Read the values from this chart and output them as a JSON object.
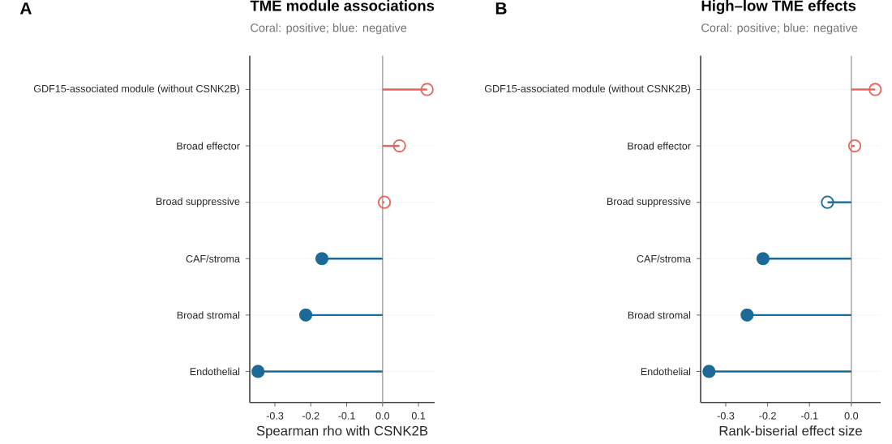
{
  "chart_data": [
    {
      "type": "lollipop",
      "orientation": "horizontal",
      "title": "TME module associations",
      "subtitle": "Coral: positive; blue: negative",
      "xlabel": "Spearman rho with CSNK2B",
      "annotations": [
        "A"
      ],
      "categories": [
        "GDF15-associated module (without CSNK2B)",
        "Broad effector",
        "Broad suppressive",
        "CAF/stroma",
        "Broad stromal",
        "Endothelial"
      ],
      "series": [
        {
          "color": "#e8635a",
          "marker": "circle-open",
          "values": [
            0.124,
            0.047,
            0.005,
            null,
            null,
            null
          ]
        },
        {
          "color": "#1b6a97",
          "marker": "circle",
          "values": [
            null,
            null,
            null,
            -0.169,
            -0.214,
            -0.347
          ]
        }
      ],
      "xlim": [
        -0.37,
        0.145
      ],
      "xticks": [
        -0.3,
        -0.2,
        -0.1,
        {
          "value": 0,
          "label": "0.0"
        },
        0.1
      ],
      "ref_lines": [
        {
          "axis": "x",
          "value": 0,
          "color": "#a0a0a0"
        }
      ],
      "grid": "y"
    },
    {
      "type": "lollipop",
      "orientation": "horizontal",
      "title": "High–low TME effects",
      "subtitle": "Coral: positive; blue: negative",
      "xlabel": "Rank-biserial effect size",
      "annotations": [
        "B"
      ],
      "categories": [
        "GDF15-associated module (without CSNK2B)",
        "Broad effector",
        "Broad suppressive",
        "CAF/stroma",
        "Broad stromal",
        "Endothelial"
      ],
      "series": [
        {
          "color": "#e8635a",
          "marker": "circle-open",
          "values": [
            0.057,
            0.008,
            null,
            null,
            null,
            null
          ]
        },
        {
          "color": "#1b6a97",
          "marker": "circle-open",
          "values": [
            null,
            null,
            -0.057,
            null,
            null,
            null
          ]
        },
        {
          "color": "#1b6a97",
          "marker": "circle",
          "values": [
            null,
            null,
            null,
            -0.211,
            -0.249,
            -0.34
          ]
        }
      ],
      "xlim": [
        -0.36,
        0.07
      ],
      "xticks": [
        -0.3,
        -0.2,
        -0.1,
        {
          "value": 0,
          "label": "0.0"
        }
      ],
      "ref_lines": [
        {
          "axis": "x",
          "value": 0,
          "color": "#a0a0a0"
        }
      ],
      "grid": "y"
    }
  ]
}
